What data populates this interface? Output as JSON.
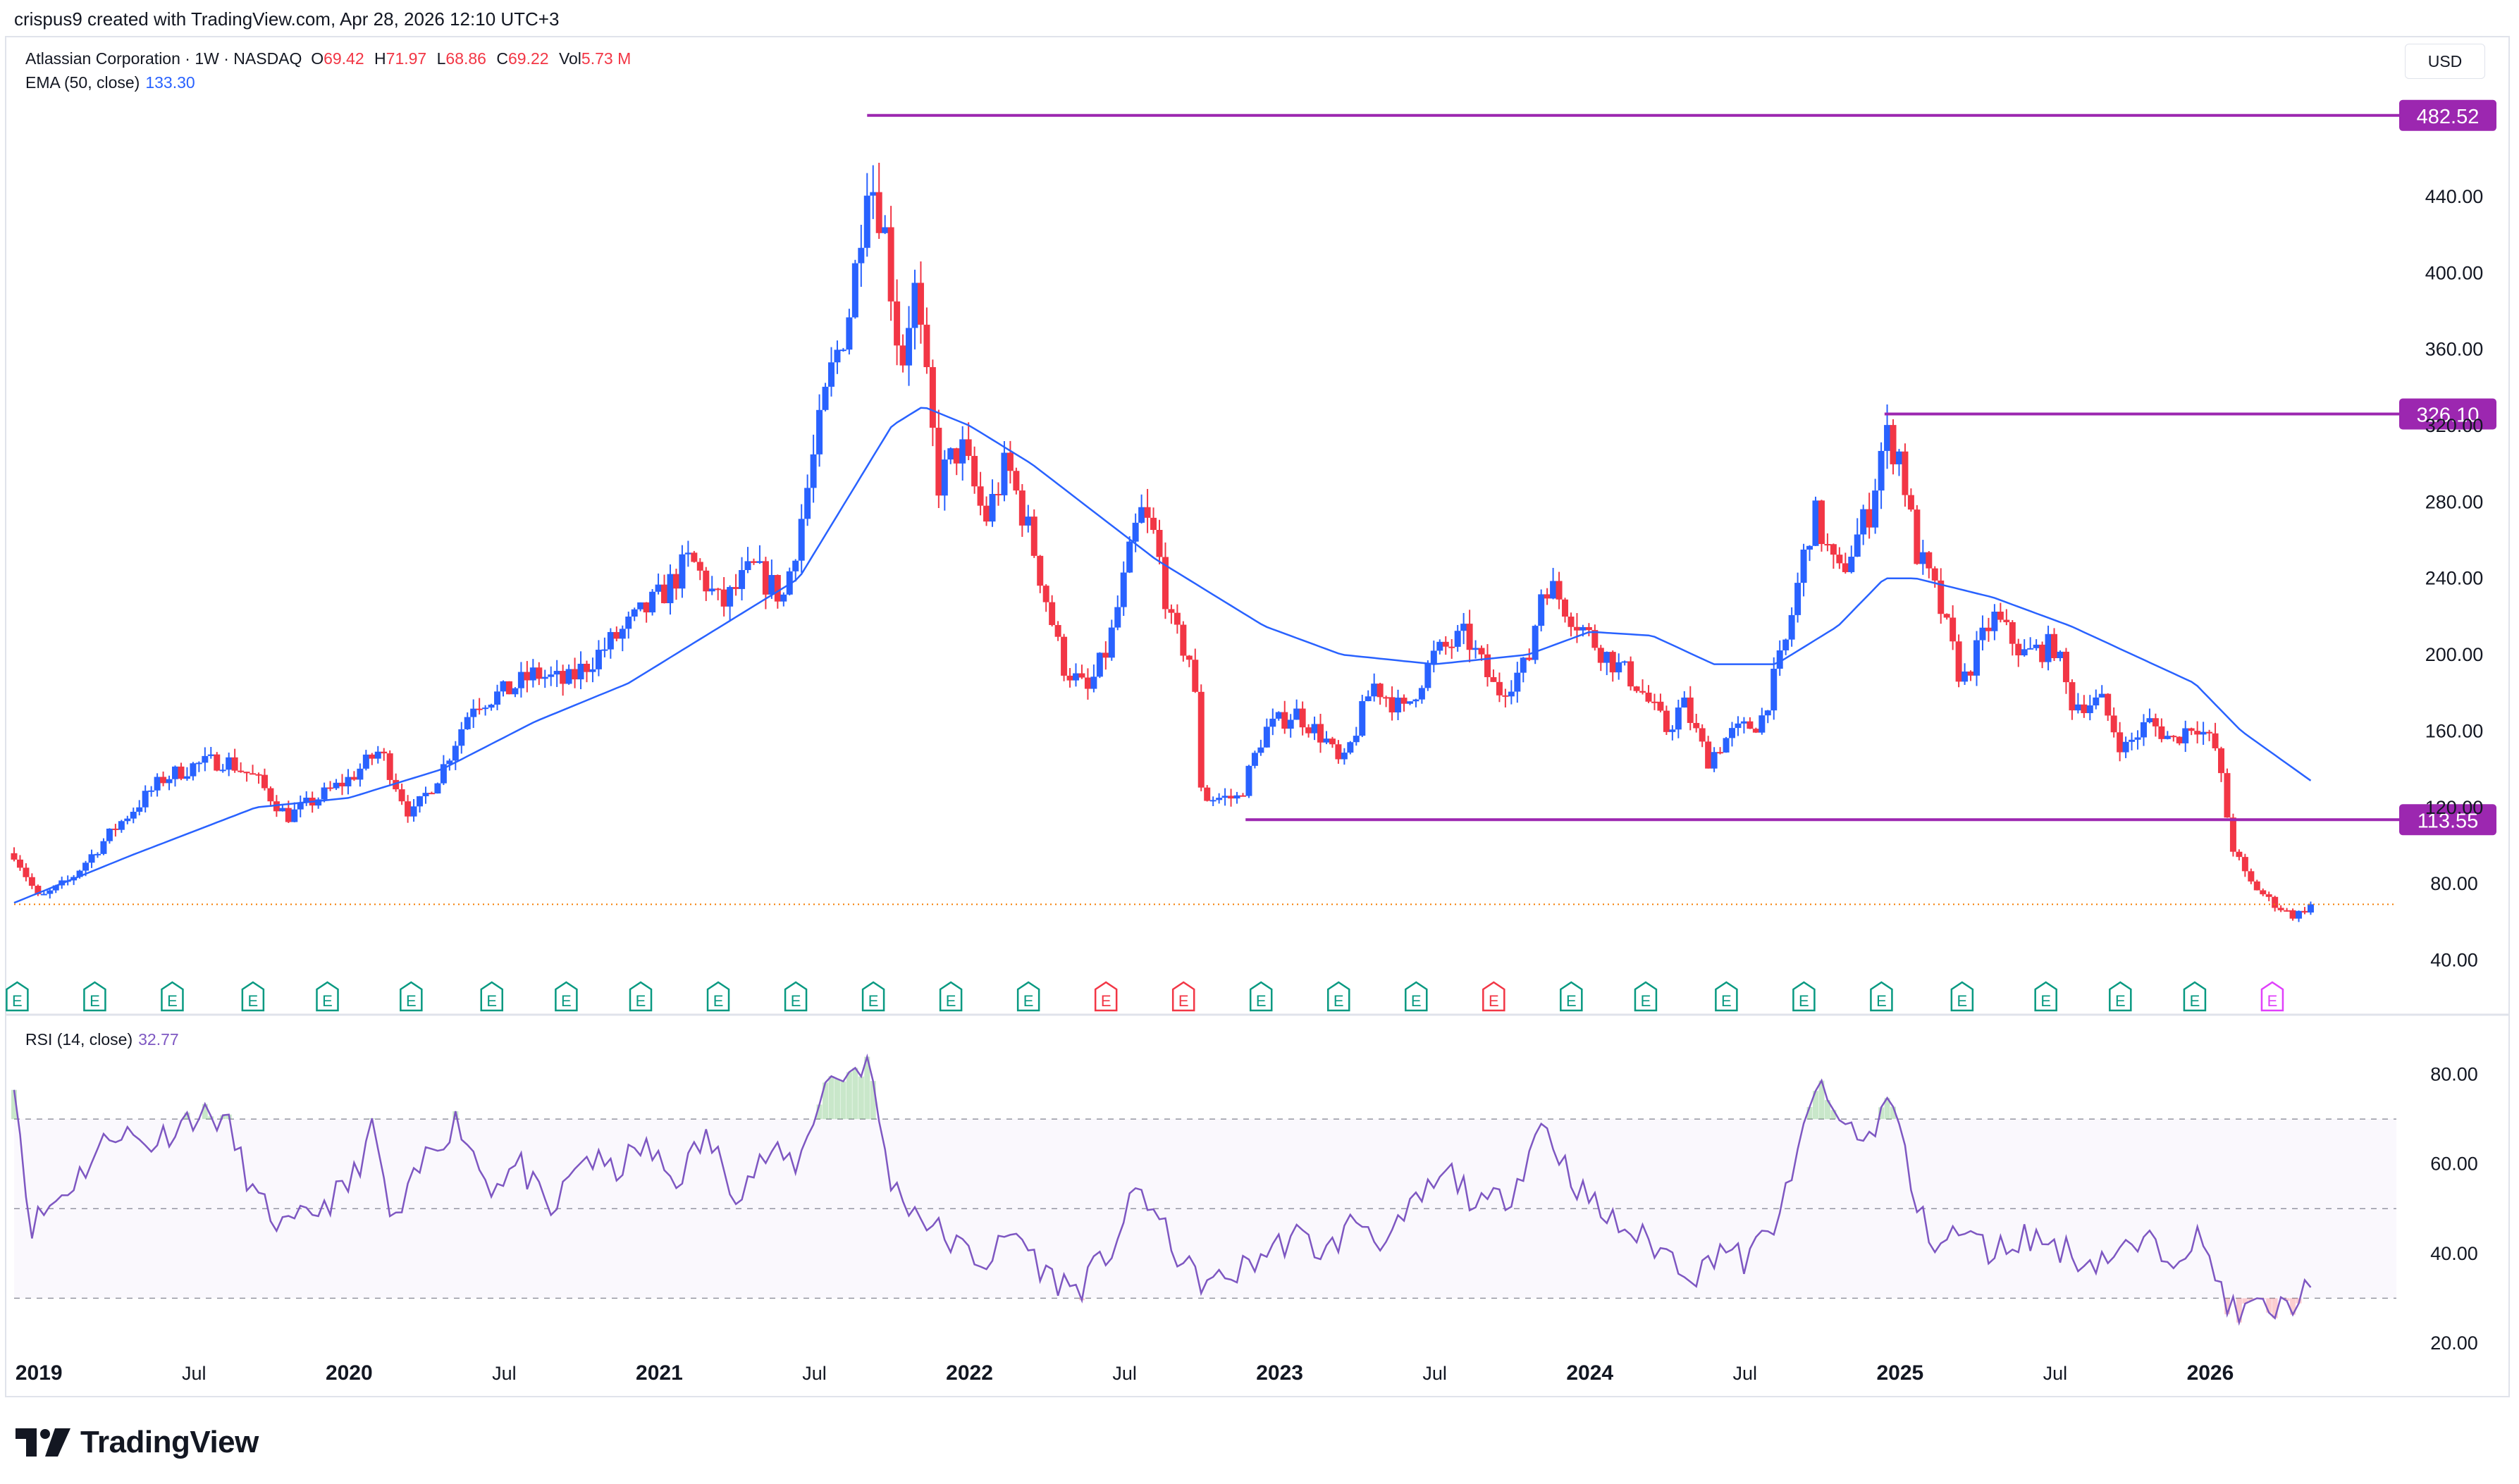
{
  "header": {
    "text": "crispus9 created with TradingView.com, Apr 28, 2026 12:10 UTC+3"
  },
  "legend": {
    "symbol": "Atlassian Corporation · 1W · NASDAQ",
    "o_label": "O",
    "o": "69.42",
    "h_label": "H",
    "h": "71.97",
    "l_label": "L",
    "l": "68.86",
    "c_label": "C",
    "c": "69.22",
    "vol_label": "Vol",
    "vol": "5.73 M",
    "ema_label": "EMA (50, close)",
    "ema_value": "133.30"
  },
  "currency": "USD",
  "rsi_legend": {
    "label": "RSI (14, close)",
    "value": "32.77"
  },
  "footer": {
    "brand": "TradingView"
  },
  "colors": {
    "up": "#2962ff",
    "down": "#f23645",
    "ema": "#2962ff",
    "level": "#9c27b0",
    "rsi": "#7e57c2",
    "earnings": "#089981",
    "earnings_miss": "#f23645"
  },
  "chart_data": [
    {
      "type": "candlestick",
      "title": "",
      "x_ticks": [
        "2019",
        "Jul",
        "2020",
        "Jul",
        "2021",
        "Jul",
        "2022",
        "Jul",
        "2023",
        "Jul",
        "2024",
        "Jul",
        "2025",
        "Jul",
        "2026"
      ],
      "x_tick_dates": [
        2019.0,
        2019.5,
        2020.0,
        2020.5,
        2021.0,
        2021.5,
        2022.0,
        2022.5,
        2023.0,
        2023.5,
        2024.0,
        2024.5,
        2025.0,
        2025.5,
        2026.0
      ],
      "x_range": [
        2018.92,
        2026.6
      ],
      "y_ticks": [
        "40.00",
        "80.00",
        "120.00",
        "160.00",
        "200.00",
        "240.00",
        "280.00",
        "320.00",
        "360.00",
        "400.00",
        "440.00"
      ],
      "ylim": [
        28,
        495
      ],
      "scale": "linear",
      "last_price": 69.22,
      "horizontal_levels": [
        {
          "value": 482.52,
          "label": "482.52",
          "from": 2021.67
        },
        {
          "value": 326.1,
          "label": "326.10",
          "from": 2024.95
        },
        {
          "value": 113.55,
          "label": "113.55",
          "from": 2022.89
        }
      ],
      "close_anchors": [
        [
          2018.92,
          96
        ],
        [
          2019.0,
          72
        ],
        [
          2019.1,
          82
        ],
        [
          2019.25,
          110
        ],
        [
          2019.4,
          135
        ],
        [
          2019.5,
          142
        ],
        [
          2019.6,
          145
        ],
        [
          2019.7,
          135
        ],
        [
          2019.8,
          115
        ],
        [
          2019.9,
          125
        ],
        [
          2020.0,
          135
        ],
        [
          2020.1,
          150
        ],
        [
          2020.2,
          115
        ],
        [
          2020.3,
          140
        ],
        [
          2020.4,
          175
        ],
        [
          2020.5,
          180
        ],
        [
          2020.6,
          190
        ],
        [
          2020.7,
          185
        ],
        [
          2020.8,
          200
        ],
        [
          2020.9,
          215
        ],
        [
          2021.0,
          230
        ],
        [
          2021.1,
          250
        ],
        [
          2021.2,
          225
        ],
        [
          2021.3,
          245
        ],
        [
          2021.4,
          230
        ],
        [
          2021.45,
          265
        ],
        [
          2021.55,
          345
        ],
        [
          2021.62,
          385
        ],
        [
          2021.67,
          455
        ],
        [
          2021.72,
          430
        ],
        [
          2021.78,
          350
        ],
        [
          2021.82,
          395
        ],
        [
          2021.9,
          290
        ],
        [
          2021.97,
          310
        ],
        [
          2022.05,
          270
        ],
        [
          2022.12,
          300
        ],
        [
          2022.2,
          260
        ],
        [
          2022.3,
          195
        ],
        [
          2022.38,
          180
        ],
        [
          2022.45,
          205
        ],
        [
          2022.55,
          275
        ],
        [
          2022.6,
          260
        ],
        [
          2022.65,
          215
        ],
        [
          2022.72,
          195
        ],
        [
          2022.75,
          125
        ],
        [
          2022.8,
          125
        ],
        [
          2022.87,
          125
        ],
        [
          2022.95,
          160
        ],
        [
          2023.05,
          170
        ],
        [
          2023.15,
          155
        ],
        [
          2023.2,
          140
        ],
        [
          2023.3,
          185
        ],
        [
          2023.4,
          170
        ],
        [
          2023.5,
          200
        ],
        [
          2023.6,
          210
        ],
        [
          2023.7,
          180
        ],
        [
          2023.8,
          195
        ],
        [
          2023.85,
          240
        ],
        [
          2023.9,
          230
        ],
        [
          2023.97,
          215
        ],
        [
          2024.05,
          200
        ],
        [
          2024.15,
          185
        ],
        [
          2024.25,
          160
        ],
        [
          2024.3,
          175
        ],
        [
          2024.38,
          145
        ],
        [
          2024.45,
          158
        ],
        [
          2024.55,
          165
        ],
        [
          2024.63,
          205
        ],
        [
          2024.72,
          275
        ],
        [
          2024.8,
          240
        ],
        [
          2024.9,
          275
        ],
        [
          2024.95,
          315
        ],
        [
          2025.0,
          305
        ],
        [
          2025.05,
          255
        ],
        [
          2025.12,
          230
        ],
        [
          2025.2,
          185
        ],
        [
          2025.3,
          220
        ],
        [
          2025.4,
          200
        ],
        [
          2025.5,
          205
        ],
        [
          2025.55,
          175
        ],
        [
          2025.65,
          175
        ],
        [
          2025.72,
          150
        ],
        [
          2025.8,
          165
        ],
        [
          2025.88,
          155
        ],
        [
          2025.95,
          165
        ],
        [
          2026.02,
          150
        ],
        [
          2026.07,
          100
        ],
        [
          2026.12,
          82
        ],
        [
          2026.2,
          70
        ],
        [
          2026.27,
          63
        ],
        [
          2026.33,
          69.22
        ]
      ],
      "ema_anchors": [
        [
          2018.92,
          70
        ],
        [
          2019.3,
          95
        ],
        [
          2019.7,
          120
        ],
        [
          2020.0,
          125
        ],
        [
          2020.3,
          140
        ],
        [
          2020.6,
          165
        ],
        [
          2020.9,
          185
        ],
        [
          2021.2,
          215
        ],
        [
          2021.45,
          240
        ],
        [
          2021.6,
          280
        ],
        [
          2021.75,
          320
        ],
        [
          2021.85,
          330
        ],
        [
          2022.0,
          320
        ],
        [
          2022.2,
          300
        ],
        [
          2022.4,
          275
        ],
        [
          2022.6,
          250
        ],
        [
          2022.75,
          235
        ],
        [
          2022.95,
          215
        ],
        [
          2023.2,
          200
        ],
        [
          2023.5,
          195
        ],
        [
          2023.8,
          200
        ],
        [
          2024.0,
          212
        ],
        [
          2024.2,
          210
        ],
        [
          2024.4,
          195
        ],
        [
          2024.6,
          195
        ],
        [
          2024.8,
          215
        ],
        [
          2024.95,
          240
        ],
        [
          2025.05,
          240
        ],
        [
          2025.3,
          230
        ],
        [
          2025.55,
          215
        ],
        [
          2025.75,
          200
        ],
        [
          2025.95,
          185
        ],
        [
          2026.1,
          160
        ],
        [
          2026.33,
          133.3
        ]
      ]
    },
    {
      "type": "line",
      "title": "",
      "name": "RSI (14, close)",
      "y_ticks": [
        "20.00",
        "40.00",
        "60.00",
        "80.00"
      ],
      "ylim": [
        17,
        87
      ],
      "bands": [
        30,
        50,
        70
      ],
      "anchors": [
        [
          2018.92,
          80
        ],
        [
          2018.97,
          46
        ],
        [
          2019.1,
          55
        ],
        [
          2019.25,
          68
        ],
        [
          2019.35,
          64
        ],
        [
          2019.5,
          71
        ],
        [
          2019.6,
          70
        ],
        [
          2019.7,
          52
        ],
        [
          2019.8,
          45
        ],
        [
          2019.9,
          50
        ],
        [
          2020.0,
          55
        ],
        [
          2020.08,
          68
        ],
        [
          2020.14,
          45
        ],
        [
          2020.25,
          62
        ],
        [
          2020.35,
          70
        ],
        [
          2020.45,
          55
        ],
        [
          2020.55,
          60
        ],
        [
          2020.65,
          48
        ],
        [
          2020.75,
          62
        ],
        [
          2020.85,
          58
        ],
        [
          2020.95,
          64
        ],
        [
          2021.05,
          56
        ],
        [
          2021.15,
          66
        ],
        [
          2021.25,
          54
        ],
        [
          2021.35,
          62
        ],
        [
          2021.45,
          60
        ],
        [
          2021.53,
          78
        ],
        [
          2021.6,
          80
        ],
        [
          2021.67,
          83
        ],
        [
          2021.75,
          55
        ],
        [
          2021.85,
          48
        ],
        [
          2021.95,
          42
        ],
        [
          2022.05,
          38
        ],
        [
          2022.15,
          45
        ],
        [
          2022.25,
          35
        ],
        [
          2022.35,
          32
        ],
        [
          2022.45,
          40
        ],
        [
          2022.55,
          55
        ],
        [
          2022.65,
          42
        ],
        [
          2022.72,
          35
        ],
        [
          2022.78,
          33
        ],
        [
          2022.87,
          36
        ],
        [
          2022.95,
          40
        ],
        [
          2023.05,
          44
        ],
        [
          2023.15,
          40
        ],
        [
          2023.25,
          48
        ],
        [
          2023.35,
          42
        ],
        [
          2023.45,
          52
        ],
        [
          2023.55,
          58
        ],
        [
          2023.65,
          50
        ],
        [
          2023.75,
          54
        ],
        [
          2023.85,
          70
        ],
        [
          2023.9,
          62
        ],
        [
          2023.97,
          54
        ],
        [
          2024.05,
          48
        ],
        [
          2024.15,
          44
        ],
        [
          2024.25,
          40
        ],
        [
          2024.35,
          35
        ],
        [
          2024.42,
          42
        ],
        [
          2024.5,
          38
        ],
        [
          2024.58,
          45
        ],
        [
          2024.65,
          55
        ],
        [
          2024.72,
          78
        ],
        [
          2024.8,
          70
        ],
        [
          2024.9,
          65
        ],
        [
          2024.95,
          75
        ],
        [
          2025.0,
          68
        ],
        [
          2025.05,
          50
        ],
        [
          2025.12,
          42
        ],
        [
          2025.2,
          45
        ],
        [
          2025.3,
          40
        ],
        [
          2025.4,
          44
        ],
        [
          2025.5,
          42
        ],
        [
          2025.6,
          38
        ],
        [
          2025.7,
          40
        ],
        [
          2025.8,
          42
        ],
        [
          2025.88,
          40
        ],
        [
          2025.95,
          44
        ],
        [
          2026.02,
          35
        ],
        [
          2026.08,
          26
        ],
        [
          2026.15,
          28
        ],
        [
          2026.22,
          27
        ],
        [
          2026.28,
          30
        ],
        [
          2026.33,
          32.77
        ]
      ]
    }
  ],
  "earnings_markers": [
    {
      "d": 2018.93,
      "t": "E"
    },
    {
      "d": 2019.18,
      "t": "E"
    },
    {
      "d": 2019.43,
      "t": "E"
    },
    {
      "d": 2019.69,
      "t": "E"
    },
    {
      "d": 2019.93,
      "t": "E"
    },
    {
      "d": 2020.2,
      "t": "E"
    },
    {
      "d": 2020.46,
      "t": "E"
    },
    {
      "d": 2020.7,
      "t": "E"
    },
    {
      "d": 2020.94,
      "t": "E"
    },
    {
      "d": 2021.19,
      "t": "E"
    },
    {
      "d": 2021.44,
      "t": "E"
    },
    {
      "d": 2021.69,
      "t": "E"
    },
    {
      "d": 2021.94,
      "t": "E"
    },
    {
      "d": 2022.19,
      "t": "E"
    },
    {
      "d": 2022.44,
      "t": "E",
      "miss": true
    },
    {
      "d": 2022.69,
      "t": "E",
      "miss": true
    },
    {
      "d": 2022.94,
      "t": "E"
    },
    {
      "d": 2023.19,
      "t": "E"
    },
    {
      "d": 2023.44,
      "t": "E"
    },
    {
      "d": 2023.69,
      "t": "E",
      "miss": true
    },
    {
      "d": 2023.94,
      "t": "E"
    },
    {
      "d": 2024.18,
      "t": "E"
    },
    {
      "d": 2024.44,
      "t": "E"
    },
    {
      "d": 2024.69,
      "t": "E"
    },
    {
      "d": 2024.94,
      "t": "E"
    },
    {
      "d": 2025.2,
      "t": "E"
    },
    {
      "d": 2025.47,
      "t": "E"
    },
    {
      "d": 2025.71,
      "t": "E"
    },
    {
      "d": 2025.95,
      "t": "E"
    },
    {
      "d": 2026.2,
      "t": "E",
      "upcoming": true
    }
  ]
}
